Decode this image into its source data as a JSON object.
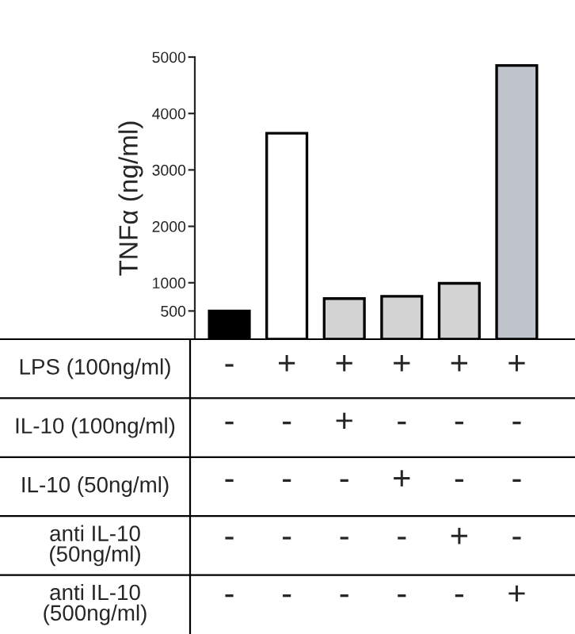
{
  "chart_data": {
    "type": "bar",
    "ylabel": "TNFα (ng/ml)",
    "categories": [
      "-\n-\n-\n-\n-",
      "+\n-\n-\n-\n-",
      "+\n+\n-\n-\n-",
      "+\n-\n+\n-\n-",
      "+\n-\n-\n+\n-",
      "+\n-\n-\n-\n+"
    ],
    "values": [
      500,
      3650,
      720,
      760,
      990,
      4850
    ],
    "colors": [
      "#000000",
      "#ffffff",
      "#d3d3d3",
      "#d3d3d3",
      "#d3d3d3",
      "#c0c4cc"
    ],
    "ylim": [
      0,
      5000
    ],
    "yticks": [
      500,
      1000,
      2000,
      3000,
      4000,
      5000
    ],
    "annotations": [
      "LPS (100ng/ml)",
      "IL-10 (100ng/ml)",
      "IL-10 (50ng/ml)",
      "anti IL-10\n(50ng/ml)",
      "anti IL-10\n(500ng/ml)"
    ]
  }
}
